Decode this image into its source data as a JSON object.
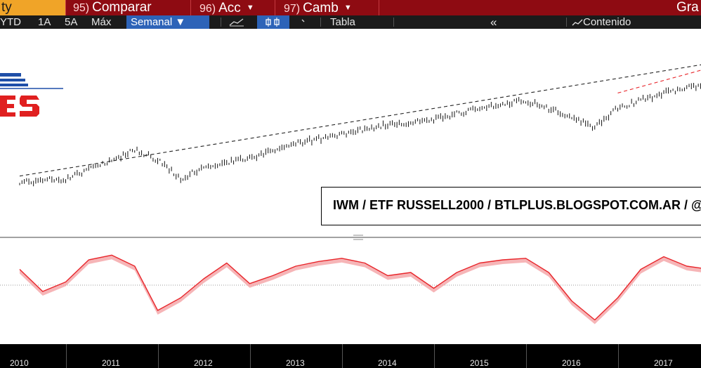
{
  "topbar": {
    "first_tab": "ty",
    "tabs": [
      {
        "num": "95)",
        "label": "Comparar",
        "caret": false
      },
      {
        "num": "96)",
        "label": "Acc",
        "caret": true
      },
      {
        "num": "97)",
        "label": "Camb",
        "caret": true
      }
    ],
    "right_label": "Gra"
  },
  "toolbar": {
    "ranges": [
      "YTD",
      "1A",
      "5A",
      "Máx"
    ],
    "period": "Semanal ▼",
    "table_label": "Tabla",
    "collapse_icon": "«",
    "content_label": "Contenido"
  },
  "annotation": "IWM / ETF RUSSELL2000 / BTLPLUS.BLOGSPOT.COM.AR / @",
  "colors": {
    "topbar": "#8e0b12",
    "active_tab": "#f0a428",
    "period_select": "#2d63b8",
    "price": "#111111",
    "oscillator": "#e8262b",
    "oscillator_fill": "#f4a3a5",
    "trend_black": "#222222",
    "trend_red": "#e8262b"
  },
  "chart_data": [
    {
      "type": "line",
      "title": "",
      "x": [
        "2010",
        "2010.5",
        "2011",
        "2011.25",
        "2011.5",
        "2011.75",
        "2012",
        "2012.5",
        "2013",
        "2013.5",
        "2014",
        "2014.5",
        "2015",
        "2015.5",
        "2016",
        "2016.25",
        "2016.5",
        "2017",
        "2017.5"
      ],
      "series": [
        {
          "values": [
            58,
            60,
            72,
            80,
            73,
            60,
            68,
            74,
            84,
            90,
            97,
            100,
            108,
            113,
            102,
            95,
            108,
            118,
            125
          ]
        }
      ],
      "trendlines": [
        {
          "style": "dashed-black",
          "from": [
            "2010",
            62
          ],
          "to": [
            "2017.5",
            138
          ]
        },
        {
          "style": "dashed-red",
          "from": [
            "2016.5",
            118
          ],
          "to": [
            "2017.5",
            135
          ]
        }
      ],
      "xlabels": [
        "2010",
        "2011",
        "2012",
        "2013",
        "2014",
        "2015",
        "2016",
        "2017"
      ],
      "grid": false
    },
    {
      "type": "line",
      "title": "",
      "x": [
        "2010",
        "2010.25",
        "2010.5",
        "2010.75",
        "2011",
        "2011.25",
        "2011.5",
        "2011.75",
        "2012",
        "2012.25",
        "2012.5",
        "2012.75",
        "2013",
        "2013.25",
        "2013.5",
        "2013.75",
        "2014",
        "2014.25",
        "2014.5",
        "2014.75",
        "2015",
        "2015.25",
        "2015.5",
        "2015.75",
        "2016",
        "2016.25",
        "2016.5",
        "2016.75",
        "2017",
        "2017.25",
        "2017.5"
      ],
      "series": [
        {
          "values": [
            0.5,
            -0.2,
            0.1,
            0.8,
            0.95,
            0.6,
            -0.8,
            -0.4,
            0.2,
            0.7,
            0.05,
            0.3,
            0.6,
            0.75,
            0.85,
            0.7,
            0.3,
            0.4,
            -0.1,
            0.4,
            0.7,
            0.8,
            0.85,
            0.4,
            -0.5,
            -1.1,
            -0.4,
            0.5,
            0.9,
            0.6,
            0.5
          ]
        }
      ],
      "reference_line": 0,
      "grid": false
    }
  ]
}
